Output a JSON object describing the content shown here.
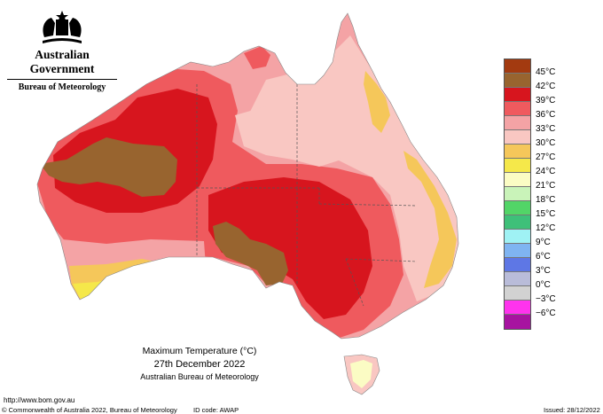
{
  "header": {
    "government": "Australian Government",
    "bureau": "Bureau of Meteorology",
    "crest_icon": "coat-of-arms-icon"
  },
  "map": {
    "region": "Australia",
    "ocean_color": "#ffffff",
    "state_borders": "dashed",
    "temperature_zones": [
      {
        "band": "30-33",
        "color": "#f9c7c2"
      },
      {
        "band": "33-36",
        "color": "#f4a3a5"
      },
      {
        "band": "36-39",
        "color": "#ef5a5e"
      },
      {
        "band": "39-42",
        "color": "#d7151e"
      },
      {
        "band": "42-45",
        "color": "#98642f"
      },
      {
        "band": "27-30",
        "color": "#f5c75a"
      },
      {
        "band": "24-27",
        "color": "#f5e84a"
      },
      {
        "band": "21-24",
        "color": "#fbfcc4"
      }
    ]
  },
  "caption": {
    "line1": "Maximum Temperature (°C)",
    "line2": "27th December 2022",
    "line3": "Australian Bureau of Meteorology"
  },
  "legend": {
    "entries": [
      {
        "label": "45°C",
        "color": "#a33a10"
      },
      {
        "label": "42°C",
        "color": "#98642f"
      },
      {
        "label": "39°C",
        "color": "#d7151e"
      },
      {
        "label": "36°C",
        "color": "#ef5a5e"
      },
      {
        "label": "33°C",
        "color": "#f4a3a5"
      },
      {
        "label": "30°C",
        "color": "#f9c7c2"
      },
      {
        "label": "27°C",
        "color": "#f5c75a"
      },
      {
        "label": "24°C",
        "color": "#f5e84a"
      },
      {
        "label": "21°C",
        "color": "#fbfcc4"
      },
      {
        "label": "18°C",
        "color": "#c9f3b9"
      },
      {
        "label": "15°C",
        "color": "#52d567"
      },
      {
        "label": "12°C",
        "color": "#3ec079"
      },
      {
        "label": "9°C",
        "color": "#9ff2f4"
      },
      {
        "label": "6°C",
        "color": "#7fb4f1"
      },
      {
        "label": "3°C",
        "color": "#5e77e5"
      },
      {
        "label": "0°C",
        "color": "#b9bcd9"
      },
      {
        "label": "−3°C",
        "color": "#d2d2d2"
      },
      {
        "label": "−6°C",
        "color": "#ff33ee"
      }
    ],
    "bottom_swatch_color": "#a713a0"
  },
  "footer": {
    "url": "http://www.bom.gov.au",
    "copyright": "© Commonwealth of Australia 2022, Bureau of Meteorology",
    "id_code": "ID code: AWAP",
    "issued": "Issued: 28/12/2022"
  }
}
